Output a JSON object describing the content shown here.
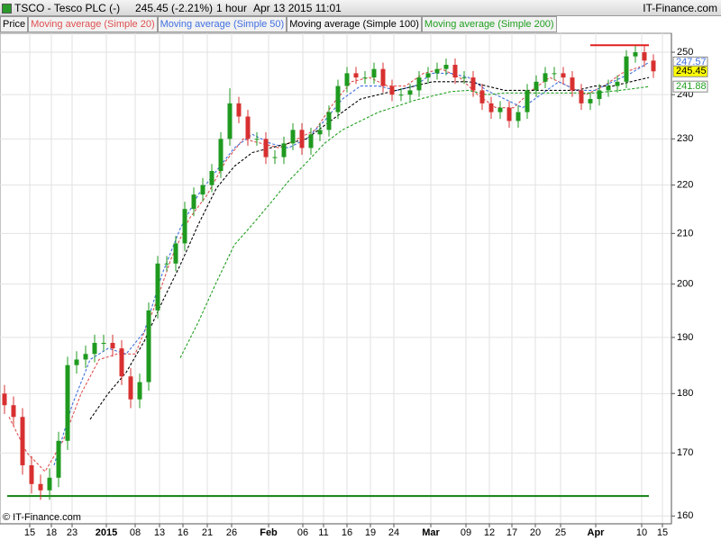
{
  "chart_data": {
    "type": "candlestick",
    "title": "TSCO - Tesco PLC (-)",
    "price_change": "245.45 (-2.21%)",
    "interval": "1 hour",
    "timestamp": "Apr 13 2015 11:01",
    "source": "IT-Finance.com",
    "copyright": "© IT-Finance.com",
    "log_scale": true,
    "grid": true,
    "ylim": [
      158.8,
      254.6
    ],
    "yticks": [
      160,
      170,
      180,
      190,
      200,
      210,
      220,
      230,
      240,
      250
    ],
    "xlim": [
      -0.5,
      74
    ],
    "xticks": [
      {
        "value": 2.8,
        "label": "15"
      },
      {
        "value": 5.2,
        "label": "18"
      },
      {
        "value": 7.5,
        "label": "23"
      },
      {
        "value": 11.3,
        "label": "2015"
      },
      {
        "value": 14.5,
        "label": "08"
      },
      {
        "value": 17.2,
        "label": "13"
      },
      {
        "value": 19.8,
        "label": "16"
      },
      {
        "value": 22.5,
        "label": "21"
      },
      {
        "value": 25.2,
        "label": "26"
      },
      {
        "value": 29.3,
        "label": "Feb"
      },
      {
        "value": 33.1,
        "label": "06"
      },
      {
        "value": 35.4,
        "label": "11"
      },
      {
        "value": 38.0,
        "label": "16"
      },
      {
        "value": 40.6,
        "label": "19"
      },
      {
        "value": 43.2,
        "label": "24"
      },
      {
        "value": 47.3,
        "label": "Mar"
      },
      {
        "value": 51.2,
        "label": "09"
      },
      {
        "value": 53.8,
        "label": "12"
      },
      {
        "value": 56.3,
        "label": "17"
      },
      {
        "value": 58.9,
        "label": "20"
      },
      {
        "value": 61.7,
        "label": "25"
      },
      {
        "value": 65.6,
        "label": "Apr"
      },
      {
        "value": 70.7,
        "label": "10"
      },
      {
        "value": 73.0,
        "label": "15"
      }
    ],
    "price": {
      "name": "Price",
      "up_color": "#1f9a1f",
      "down_color": "#d83030",
      "axis_label_color": "#ffff00",
      "x": [
        0,
        1,
        2,
        3,
        4,
        5,
        6,
        7,
        8,
        9,
        10,
        11,
        12,
        13,
        14,
        15,
        16,
        17,
        18,
        19,
        20,
        21,
        22,
        23,
        24,
        25,
        26,
        27,
        28,
        29,
        30,
        31,
        32,
        33,
        34,
        35,
        36,
        37,
        38,
        39,
        40,
        41,
        42,
        43,
        44,
        45,
        46,
        47,
        48,
        49,
        50,
        51,
        52,
        53,
        54,
        55,
        56,
        57,
        58,
        59,
        60,
        61,
        62,
        63,
        64,
        65,
        66,
        67,
        68,
        69,
        70,
        71,
        72
      ],
      "open": [
        180,
        178,
        176,
        168,
        165,
        164,
        166,
        172,
        185,
        186,
        187,
        189,
        189,
        188,
        183,
        179,
        182,
        195,
        204,
        204,
        208,
        215,
        218,
        220,
        223,
        230,
        238,
        235,
        230,
        230,
        226,
        226,
        229,
        232,
        228,
        231,
        232,
        236,
        242,
        245,
        244,
        244,
        246,
        242,
        240,
        240,
        241,
        244,
        245,
        246,
        247,
        244,
        244,
        241,
        238,
        236,
        237,
        234,
        236,
        241,
        243,
        245,
        245,
        244,
        241,
        238,
        239,
        241,
        242,
        243,
        249,
        250,
        248
      ],
      "high": [
        181.5,
        179.5,
        177.5,
        169.5,
        166.5,
        167.5,
        173.5,
        186.5,
        187.5,
        188.5,
        190.5,
        190.5,
        190.5,
        189.5,
        184.5,
        183.5,
        196.5,
        205.5,
        205.5,
        209.5,
        216.5,
        219.5,
        221.5,
        224.5,
        231.5,
        241.5,
        239.5,
        236.5,
        231.5,
        231.5,
        227.5,
        230.5,
        233.5,
        233.5,
        232.5,
        233.5,
        237.5,
        243.5,
        246.5,
        246.5,
        245.5,
        247.5,
        247.5,
        243.5,
        241.5,
        242.5,
        245.5,
        246.5,
        247.5,
        248.5,
        248.5,
        245.5,
        245.5,
        242.5,
        239.5,
        238.5,
        238.5,
        237.5,
        242.5,
        244.5,
        246.5,
        246.5,
        246.5,
        245.5,
        242.5,
        240.5,
        242.5,
        243.5,
        244.5,
        250.5,
        251.5,
        251.5,
        249.5
      ],
      "low": [
        176.5,
        174.5,
        166.5,
        163.5,
        162.5,
        162.5,
        164.5,
        170.5,
        183.5,
        184.5,
        185.5,
        187.5,
        186.5,
        181.5,
        177.5,
        177.5,
        180.5,
        193.5,
        202.5,
        202.5,
        206.5,
        213.5,
        216.5,
        218.5,
        221.5,
        228.5,
        233.5,
        228.5,
        228.5,
        224.5,
        224.5,
        224.5,
        227.5,
        226.5,
        226.5,
        229.5,
        230.5,
        234.5,
        240.5,
        242.5,
        242.5,
        242.5,
        240.5,
        238.5,
        238.5,
        238.5,
        239.5,
        242.5,
        243.5,
        244.5,
        242.5,
        242.5,
        239.5,
        236.5,
        234.5,
        234.5,
        232.5,
        232.5,
        234.5,
        239.5,
        241.5,
        243.5,
        242.5,
        239.5,
        236.5,
        236.5,
        237.5,
        239.5,
        240.5,
        241.5,
        247.5,
        246.5,
        243.9
      ],
      "close": [
        178,
        176,
        168,
        165,
        164,
        166,
        172,
        185,
        186,
        187,
        189,
        189,
        188,
        183,
        179,
        182,
        195,
        204,
        204,
        208,
        215,
        218,
        220,
        223,
        230,
        238,
        235,
        230,
        230,
        226,
        226,
        229,
        232,
        228,
        231,
        232,
        236,
        242,
        245,
        244,
        244,
        246,
        242,
        240,
        240,
        241,
        244,
        245,
        246,
        247,
        244,
        244,
        241,
        238,
        236,
        237,
        234,
        236,
        241,
        243,
        245,
        245,
        244,
        241,
        238,
        239,
        241,
        242,
        243,
        249,
        250,
        248,
        245.45
      ]
    },
    "overlays": [
      {
        "name": "Moving average (Simple 20)",
        "color": "#e05050",
        "x": [
          0.5,
          2.5,
          4.5,
          6.5,
          8.5,
          10.5,
          12.5,
          14.5,
          16.5,
          18.5,
          20.5,
          22.5,
          24.5,
          26.5,
          28.5,
          30.5,
          32.5,
          34.5,
          36.5,
          38.5,
          40.5,
          42.5,
          44.5,
          46.5,
          48.5,
          50.5,
          52.5,
          54.5,
          56.5,
          58.5,
          60.5,
          62.5,
          64.5,
          66.5,
          68.5,
          70.5
        ],
        "values": [
          176,
          170,
          167,
          172,
          180,
          186,
          187,
          187,
          195,
          205,
          213,
          218,
          225,
          230,
          229,
          228,
          230,
          232,
          238,
          243,
          244,
          242,
          242,
          245,
          246,
          244,
          240,
          237,
          237,
          241,
          244,
          242,
          240,
          242,
          245,
          246.5
        ]
      },
      {
        "name": "Moving average (Simple 50)",
        "color": "#4070e0",
        "axis_label": true,
        "x": [
          5.5,
          7.5,
          9.5,
          11.5,
          13.5,
          15.5,
          17.5,
          19.5,
          21.5,
          23.5,
          25.5,
          27.5,
          29.5,
          31.5,
          33.5,
          35.5,
          37.5,
          39.5,
          41.5,
          43.5,
          45.5,
          47.5,
          49.5,
          51.5,
          53.5,
          55.5,
          57.5,
          59.5,
          61.5,
          63.5,
          65.5,
          67.5,
          69.5,
          71.5
        ],
        "values": [
          168,
          178,
          186,
          188,
          187,
          191,
          202,
          211,
          218,
          223,
          228,
          231,
          229,
          228,
          230,
          234,
          239,
          242,
          242,
          241,
          242,
          245,
          245,
          244,
          241,
          239,
          237,
          240,
          243,
          241,
          241,
          243,
          245,
          247.57
        ]
      },
      {
        "name": "Moving average (Simple 100)",
        "color": "#000000",
        "x": [
          9.5,
          11.5,
          13.5,
          15.5,
          17.5,
          19.5,
          21.5,
          23.5,
          25.5,
          27.5,
          29.5,
          31.5,
          33.5,
          35.5,
          37.5,
          39.5,
          41.5,
          43.5,
          45.5,
          47.5,
          49.5,
          51.5,
          53.5,
          55.5,
          57.5,
          59.5,
          61.5,
          63.5,
          65.5,
          67.5,
          69.5,
          71.5
        ],
        "values": [
          175.6,
          180,
          183.7,
          189.3,
          196.6,
          203.7,
          211.8,
          219.3,
          224,
          227,
          228,
          229,
          230,
          233,
          236,
          239,
          240,
          241,
          242,
          243,
          243,
          243,
          242,
          241,
          241,
          241,
          241,
          241,
          242,
          242,
          243,
          244
        ]
      },
      {
        "name": "Moving average (Simple 200)",
        "color": "#20a020",
        "axis_label": true,
        "x": [
          19.5,
          21.5,
          23.5,
          25.5,
          27.5,
          29.5,
          31.5,
          33.5,
          35.5,
          37.5,
          39.5,
          41.5,
          43.5,
          45.5,
          47.5,
          49.5,
          51.5,
          53.5,
          55.5,
          57.5,
          59.5,
          61.5,
          63.5,
          65.5,
          67.5,
          69.5,
          71.5
        ],
        "values": [
          186.3,
          192.8,
          200.3,
          207.7,
          211.8,
          216.2,
          220.8,
          224.8,
          229,
          232,
          234,
          236,
          237.3,
          238.7,
          239.7,
          240.7,
          241,
          240,
          240.4,
          240.4,
          240.4,
          240.4,
          240.4,
          240.4,
          240.8,
          241.3,
          241.88
        ]
      }
    ],
    "hlines": [
      {
        "color": "#e02020",
        "value": 251.7,
        "x": [
          65,
          71.5
        ]
      },
      {
        "color": "#108010",
        "value": 163.1,
        "x": [
          0.3,
          71.5
        ]
      }
    ]
  }
}
